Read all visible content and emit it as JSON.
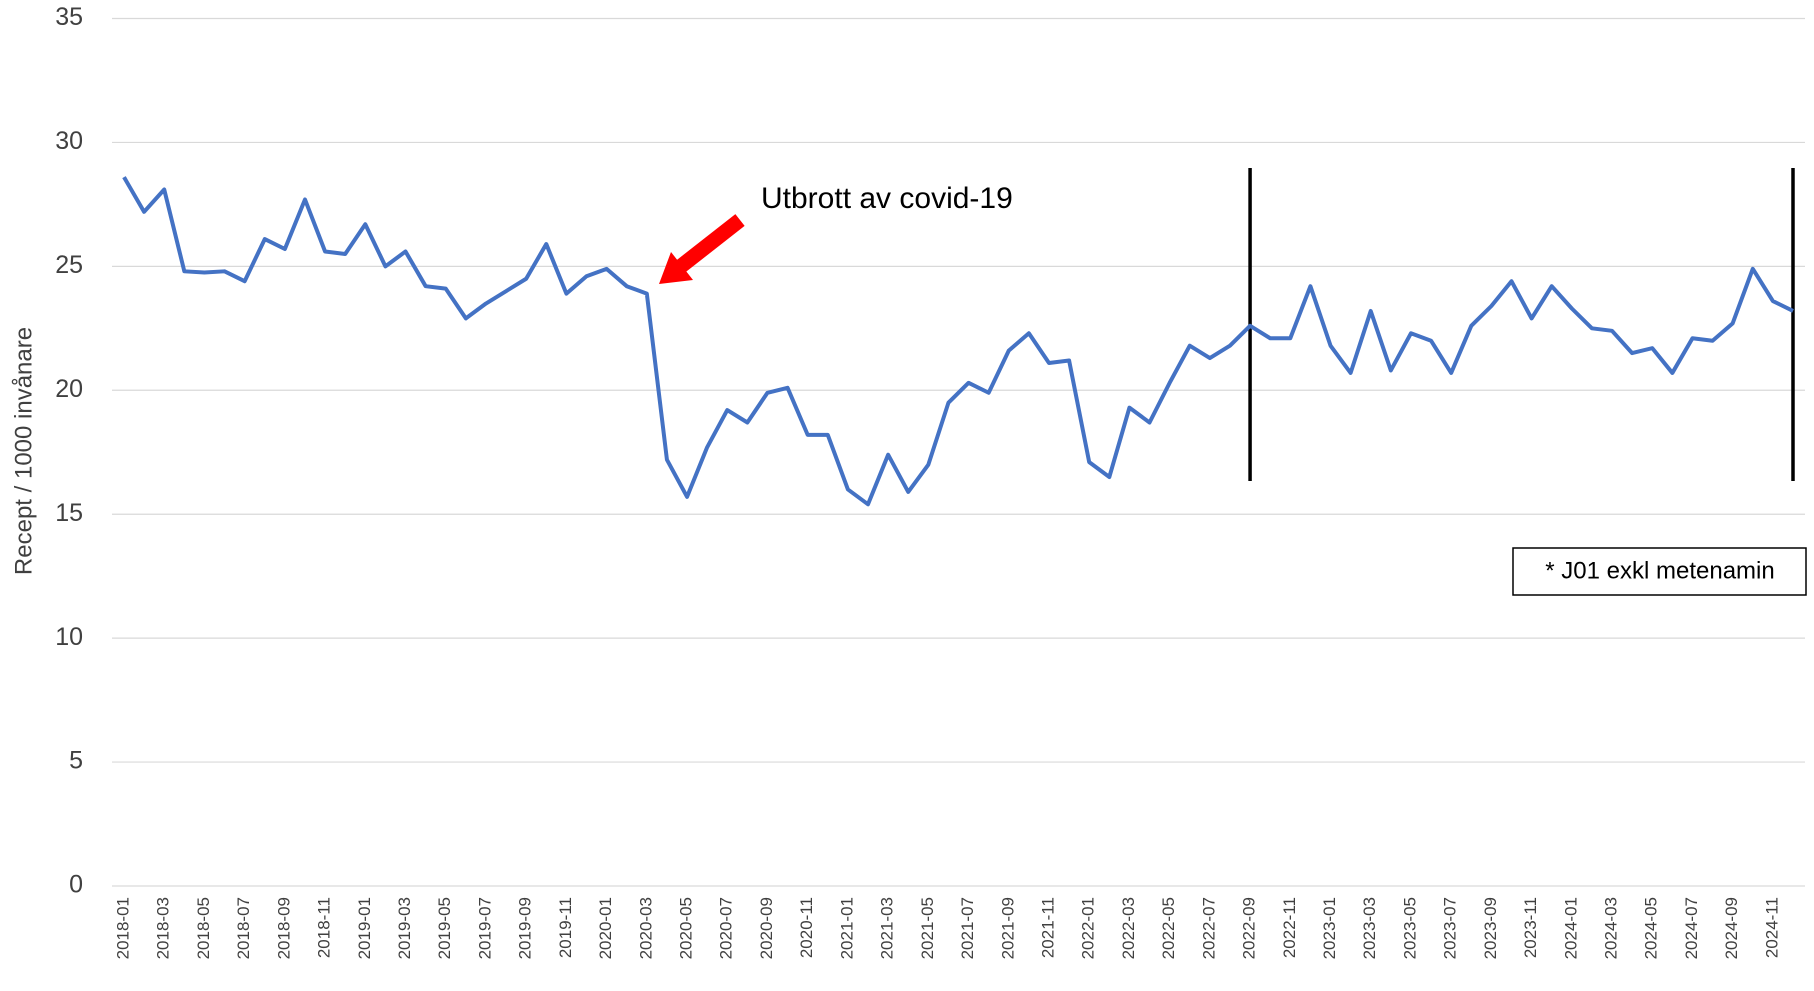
{
  "chart_data": {
    "type": "line",
    "ylabel": "Recept / 1000 invånare",
    "categories": [
      "2018-01",
      null,
      "2018-03",
      null,
      "2018-05",
      null,
      "2018-07",
      null,
      "2018-09",
      null,
      "2018-11",
      null,
      "2019-01",
      null,
      "2019-03",
      null,
      "2019-05",
      null,
      "2019-07",
      null,
      "2019-09",
      null,
      "2019-11",
      null,
      "2020-01",
      null,
      "2020-03",
      null,
      "2020-05",
      null,
      "2020-07",
      null,
      "2020-09",
      null,
      "2020-11",
      null,
      "2021-01",
      null,
      "2021-03",
      null,
      "2021-05",
      null,
      "2021-07",
      null,
      "2021-09",
      null,
      "2021-11",
      null,
      "2022-01",
      null,
      "2022-03",
      null,
      "2022-05",
      null,
      "2022-07",
      null,
      "2022-09",
      null,
      "2022-11",
      null,
      "2023-01",
      null,
      "2023-03",
      null,
      "2023-05",
      null,
      "2023-07",
      null,
      "2023-09",
      null,
      "2023-11",
      null,
      "2024-01",
      null,
      "2024-03",
      null,
      "2024-05",
      null,
      "2024-07",
      null,
      "2024-09",
      null,
      "2024-11",
      null
    ],
    "values": [
      28.6,
      27.2,
      28.1,
      24.8,
      24.75,
      24.8,
      24.4,
      26.1,
      25.7,
      27.7,
      25.6,
      25.5,
      26.7,
      25.0,
      25.6,
      24.2,
      24.1,
      22.9,
      23.5,
      24.0,
      24.5,
      25.9,
      23.9,
      24.6,
      24.9,
      24.2,
      23.9,
      17.2,
      15.7,
      17.7,
      19.2,
      18.7,
      19.9,
      20.1,
      18.2,
      18.2,
      16.0,
      15.4,
      17.4,
      15.9,
      17.0,
      19.5,
      20.3,
      19.9,
      21.6,
      22.3,
      21.1,
      21.2,
      17.1,
      16.5,
      19.3,
      18.7,
      20.3,
      21.8,
      21.3,
      21.8,
      22.6,
      22.1,
      22.1,
      24.2,
      21.8,
      20.7,
      23.2,
      20.8,
      22.3,
      22.0,
      20.7,
      22.6,
      23.4,
      24.4,
      22.9,
      24.2,
      23.3,
      22.5,
      22.4,
      21.5,
      21.7,
      20.7,
      22.1,
      22.0,
      22.7,
      24.9,
      23.6,
      23.2
    ],
    "color": "#4472c4",
    "ylim": [
      0,
      35
    ],
    "yticks": [
      0,
      5,
      10,
      15,
      20,
      25,
      30,
      35
    ],
    "grid": true,
    "annotations": [
      "Utbrott av covid-19",
      "* J01 exkl metenamin"
    ]
  }
}
